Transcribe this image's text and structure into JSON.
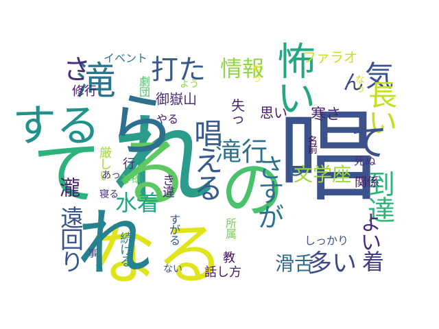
{
  "wordcloud": {
    "words": [
      {
        "text": "唱",
        "color": "#3b528b"
      },
      {
        "text": "れ",
        "color": "#2a9c89"
      },
      {
        "text": "る",
        "color": "#5ec962"
      },
      {
        "text": "の",
        "color": "#4ac16d"
      },
      {
        "text": "なる",
        "color": "#e0e41a"
      },
      {
        "text": "れ",
        "color": "#26828e"
      },
      {
        "text": "て",
        "color": "#2db27d"
      },
      {
        "text": "ら",
        "color": "#2d708e"
      },
      {
        "text": "する",
        "color": "#21918c"
      },
      {
        "text": "滝",
        "color": "#2b758e"
      },
      {
        "text": "怖い",
        "color": "#26a784"
      },
      {
        "text": "気",
        "color": "#3b528b"
      },
      {
        "text": "長い",
        "color": "#c2df23"
      },
      {
        "text": "て",
        "color": "#3b518b"
      },
      {
        "text": "さ",
        "color": "#472e7c"
      },
      {
        "text": "打た",
        "color": "#38598c"
      },
      {
        "text": "情報",
        "color": "#8fd744"
      },
      {
        "text": "ファラオ",
        "color": "#c8e020"
      },
      {
        "text": "ん",
        "color": "#3e4989"
      },
      {
        "text": "唱える",
        "color": "#38598c"
      },
      {
        "text": "滝行",
        "color": "#2d718e"
      },
      {
        "text": "文学座",
        "color": "#9dd93b"
      },
      {
        "text": "し",
        "color": "#31678e"
      },
      {
        "text": "さすが",
        "color": "#2c728e"
      },
      {
        "text": "到達",
        "color": "#2fb47c"
      },
      {
        "text": "よい",
        "color": "#472a7a"
      },
      {
        "text": "着",
        "color": "#433e85"
      },
      {
        "text": "滑舌",
        "color": "#31688e"
      },
      {
        "text": "多い",
        "color": "#3e4a89"
      },
      {
        "text": "水着",
        "color": "#21a685"
      },
      {
        "text": "瀧",
        "color": "#482374"
      },
      {
        "text": "遠回り",
        "color": "#39558c"
      },
      {
        "text": "御嶽山",
        "color": "#46317e"
      },
      {
        "text": "思い",
        "color": "#48186a"
      },
      {
        "text": "寒さ",
        "color": "#482576"
      },
      {
        "text": "失っ",
        "color": "#482374"
      },
      {
        "text": "修行",
        "color": "#481769"
      },
      {
        "text": "劇団",
        "color": "#4ec36b"
      },
      {
        "text": "イベント",
        "color": "#2a788e"
      },
      {
        "text": "よう",
        "color": "#8bd646"
      },
      {
        "text": "やっ",
        "color": "#fde725"
      },
      {
        "text": "なっ",
        "color": "#d2e21b"
      },
      {
        "text": "やる",
        "color": "#48186a"
      },
      {
        "text": "き違",
        "color": "#482173"
      },
      {
        "text": "名前",
        "color": "#440154"
      },
      {
        "text": "死ぬ",
        "color": "#46317e"
      },
      {
        "text": "関係",
        "color": "#481d6f"
      },
      {
        "text": "しっかり",
        "color": "#3a538b"
      },
      {
        "text": "厳しい",
        "color": "#a2da37"
      },
      {
        "text": "あっ",
        "color": "#443a83"
      },
      {
        "text": "寝る",
        "color": "#46327e"
      },
      {
        "text": "行",
        "color": "#482979"
      },
      {
        "text": "神様",
        "color": "#5cc863"
      },
      {
        "text": "事",
        "color": "#3f4788"
      },
      {
        "text": "続ける",
        "color": "#27808e"
      },
      {
        "text": "すがる",
        "color": "#3a548c"
      },
      {
        "text": "所属",
        "color": "#75d054"
      },
      {
        "text": "ない",
        "color": "#3e4c8a"
      },
      {
        "text": "教",
        "color": "#471164"
      },
      {
        "text": "話し方",
        "color": "#48186a"
      }
    ]
  }
}
